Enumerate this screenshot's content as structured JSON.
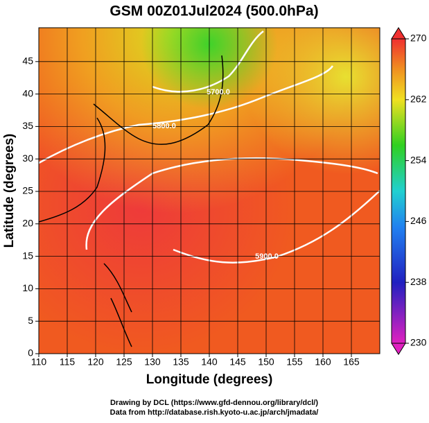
{
  "chart_data": {
    "type": "map",
    "title": "GSM 00Z01Jul2024 (500.0hPa)",
    "xlabel": "Longitude (degrees)",
    "ylabel": "Latitude  (degrees)",
    "xlim": [
      110,
      170
    ],
    "ylim": [
      0,
      50
    ],
    "xticks": [
      110,
      115,
      120,
      125,
      130,
      135,
      140,
      145,
      150,
      155,
      160,
      165
    ],
    "yticks": [
      0,
      5,
      10,
      15,
      20,
      25,
      30,
      35,
      40,
      45
    ],
    "grid": true,
    "colorbar": {
      "lim": [
        230,
        270
      ],
      "ticks": [
        230,
        238,
        246,
        254,
        262,
        270
      ]
    },
    "contour_labels": [
      "5700.0",
      "5800.0",
      "5900.0"
    ],
    "footer": [
      "Drawing by DCL (https://www.gfd-dennou.org/library/dcl/)",
      "Data from http://database.rish.kyoto-u.ac.jp/arch/jmadata/"
    ]
  }
}
